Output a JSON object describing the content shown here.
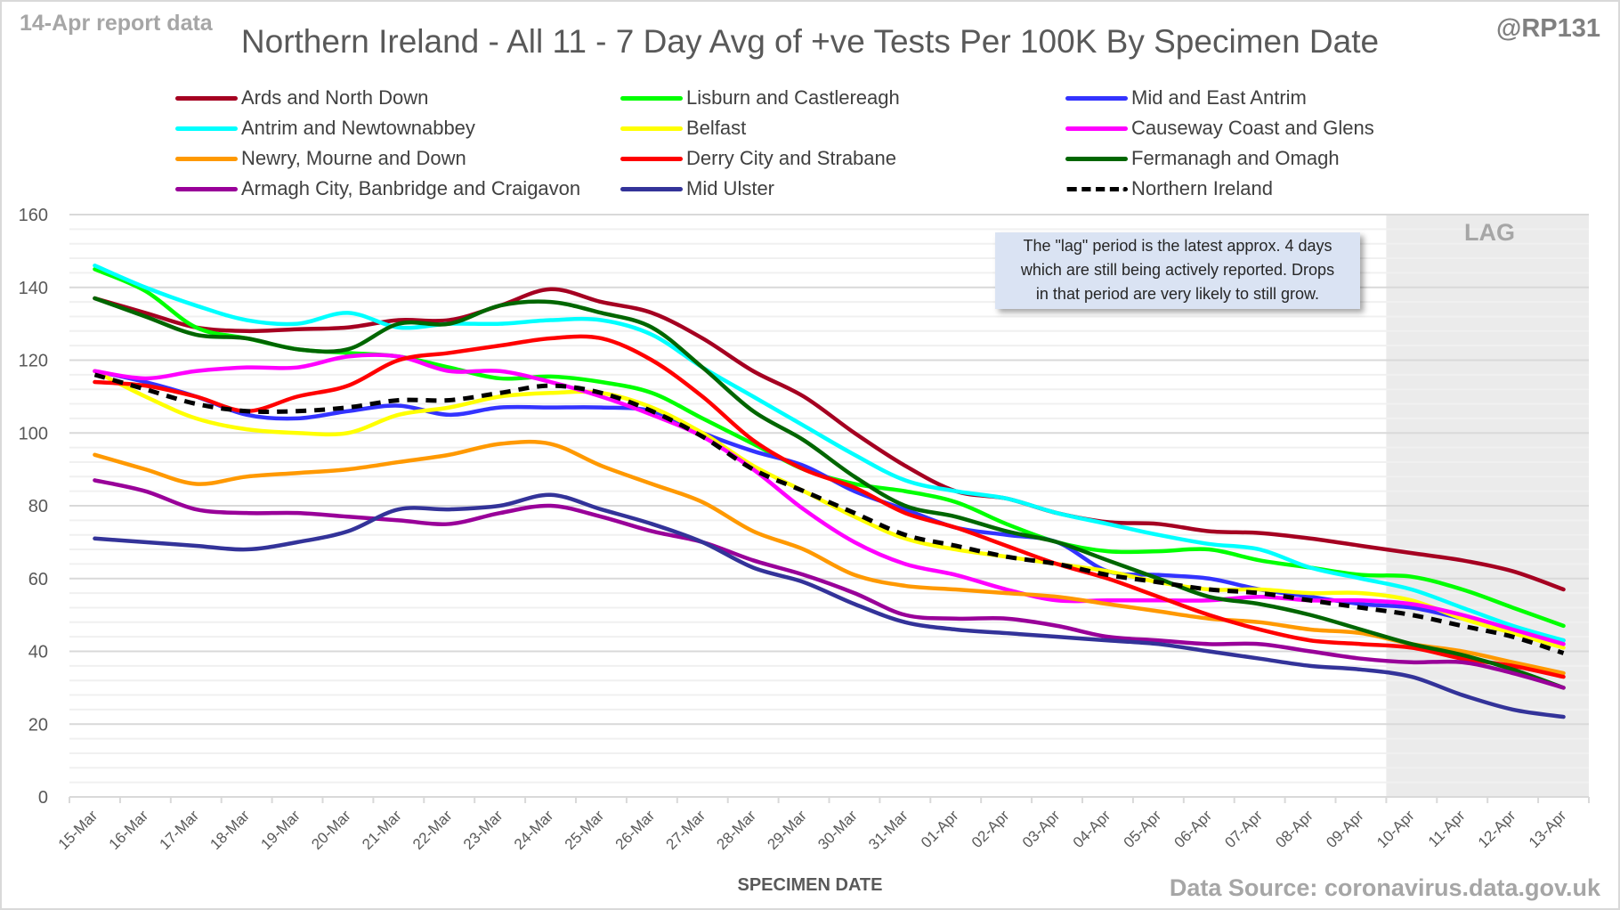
{
  "header": {
    "report_label": "14-Apr report data",
    "handle": "@RP131",
    "source": "Data Source: coronavirus.data.gov.uk"
  },
  "annotation": {
    "note_lines": [
      "The \"lag\" period is the latest approx. 4 days",
      "which are still being actively reported. Drops",
      "in that period are very likely to still grow."
    ],
    "lag_label": "LAG"
  },
  "chart_data": {
    "type": "line",
    "title": "Northern Ireland - All 11 - 7 Day Avg of +ve Tests Per 100K By Specimen Date",
    "xlabel": "SPECIMEN DATE",
    "ylabel": "",
    "ylim": [
      0,
      160
    ],
    "yticks": [
      0,
      20,
      40,
      60,
      80,
      100,
      120,
      140,
      160
    ],
    "grid": true,
    "legend_position": "top",
    "lag_period": [
      "10-Apr",
      "13-Apr"
    ],
    "categories": [
      "15-Mar",
      "16-Mar",
      "17-Mar",
      "18-Mar",
      "19-Mar",
      "20-Mar",
      "21-Mar",
      "22-Mar",
      "23-Mar",
      "24-Mar",
      "25-Mar",
      "26-Mar",
      "27-Mar",
      "28-Mar",
      "29-Mar",
      "30-Mar",
      "31-Mar",
      "01-Apr",
      "02-Apr",
      "03-Apr",
      "04-Apr",
      "05-Apr",
      "06-Apr",
      "07-Apr",
      "08-Apr",
      "09-Apr",
      "10-Apr",
      "11-Apr",
      "12-Apr",
      "13-Apr"
    ],
    "series": [
      {
        "name": "Ards and North Down",
        "color": "#a50021",
        "dashed": false,
        "values": [
          137,
          133,
          129,
          128,
          128.5,
          129,
          131,
          131,
          135,
          139.5,
          136,
          133,
          126,
          117,
          110,
          100,
          91,
          84,
          82,
          78,
          75.5,
          75,
          73,
          72.5,
          71,
          69,
          67,
          65,
          62,
          57
        ]
      },
      {
        "name": "Lisburn and Castlereagh",
        "color": "#00ff00",
        "dashed": false,
        "values": [
          145,
          139,
          129,
          126,
          123,
          122,
          121,
          118,
          115,
          115.5,
          114,
          111,
          104,
          97,
          90,
          86,
          84,
          81,
          75,
          70,
          67.5,
          67.5,
          68,
          65,
          63,
          61,
          60.5,
          57,
          52,
          47
        ]
      },
      {
        "name": "Mid and East Antrim",
        "color": "#3333ff",
        "dashed": false,
        "values": [
          117,
          114,
          110,
          105,
          104,
          106,
          107.5,
          105,
          107,
          107,
          107,
          106,
          100,
          95,
          91,
          84,
          79,
          74,
          72,
          70,
          62,
          61,
          60,
          57,
          55,
          53,
          52,
          49,
          46,
          43
        ]
      },
      {
        "name": "Antrim and Newtownabbey",
        "color": "#00ffff",
        "dashed": false,
        "values": [
          146,
          140,
          135,
          131,
          130,
          133,
          129,
          130,
          130,
          131,
          131,
          127,
          118,
          110,
          102,
          94,
          87,
          84,
          82,
          78,
          75,
          72,
          69.5,
          68,
          63,
          60,
          57,
          52,
          47,
          43
        ]
      },
      {
        "name": "Belfast",
        "color": "#ffff00",
        "dashed": false,
        "values": [
          117,
          110,
          104,
          101,
          100,
          100,
          105,
          107,
          110,
          111,
          111,
          107,
          100,
          91,
          84,
          77,
          71,
          68,
          66,
          64,
          62,
          59,
          57,
          57,
          56,
          56,
          54,
          49,
          45,
          41
        ]
      },
      {
        "name": "Causeway Coast and Glens",
        "color": "#ff00ff",
        "dashed": false,
        "values": [
          117,
          115,
          117,
          118,
          118,
          121,
          121,
          117,
          117,
          114,
          110,
          105,
          99,
          90,
          79,
          70,
          64,
          61,
          57,
          54,
          54,
          54,
          54,
          55,
          54,
          54,
          53,
          50,
          46,
          42
        ]
      },
      {
        "name": "Newry, Mourne and Down",
        "color": "#ff9900",
        "dashed": false,
        "values": [
          94,
          90,
          86,
          88,
          89,
          90,
          92,
          94,
          97,
          97,
          91,
          86,
          81,
          73,
          68,
          61,
          58,
          57,
          56,
          55,
          53,
          51,
          49,
          48,
          46,
          45,
          42,
          40,
          37,
          34
        ]
      },
      {
        "name": "Derry City and Strabane",
        "color": "#ff0000",
        "dashed": false,
        "values": [
          114,
          113,
          110,
          106,
          110,
          113,
          120,
          122,
          124,
          126,
          126,
          120,
          110,
          98,
          90,
          85,
          78,
          74,
          69,
          64,
          60,
          55,
          50,
          46,
          43,
          42,
          41,
          38,
          36,
          33
        ]
      },
      {
        "name": "Fermanagh and Omagh",
        "color": "#006600",
        "dashed": false,
        "values": [
          137,
          132,
          127,
          126,
          123,
          123,
          130,
          130,
          135,
          136,
          133,
          129,
          118,
          106,
          98,
          88,
          80,
          77,
          73,
          70,
          65,
          60,
          55,
          53,
          50,
          46,
          42,
          39,
          35,
          30
        ]
      },
      {
        "name": "Armagh City, Banbridge and Craigavon",
        "color": "#990099",
        "dashed": false,
        "values": [
          87,
          84,
          79,
          78,
          78,
          77,
          76,
          75,
          78,
          80,
          77,
          73,
          70,
          65,
          61,
          56,
          50,
          49,
          49,
          47,
          44,
          43,
          42,
          42,
          40,
          38,
          37,
          37,
          34,
          30
        ]
      },
      {
        "name": "Mid Ulster",
        "color": "#333399",
        "dashed": false,
        "values": [
          71,
          70,
          69,
          68,
          70,
          73,
          79,
          79,
          80,
          83,
          79,
          75,
          70,
          63,
          59,
          53,
          48,
          46,
          45,
          44,
          43,
          42,
          40,
          38,
          36,
          35,
          33,
          28,
          24,
          22
        ]
      },
      {
        "name": "Northern Ireland",
        "color": "#000000",
        "dashed": true,
        "values": [
          116,
          112,
          108,
          106,
          106,
          107,
          109,
          109,
          111,
          113,
          111,
          106,
          99,
          90,
          84,
          78,
          72,
          69,
          66,
          64,
          61,
          59,
          57,
          56,
          54,
          52,
          50,
          47,
          44,
          39.5
        ]
      }
    ]
  }
}
